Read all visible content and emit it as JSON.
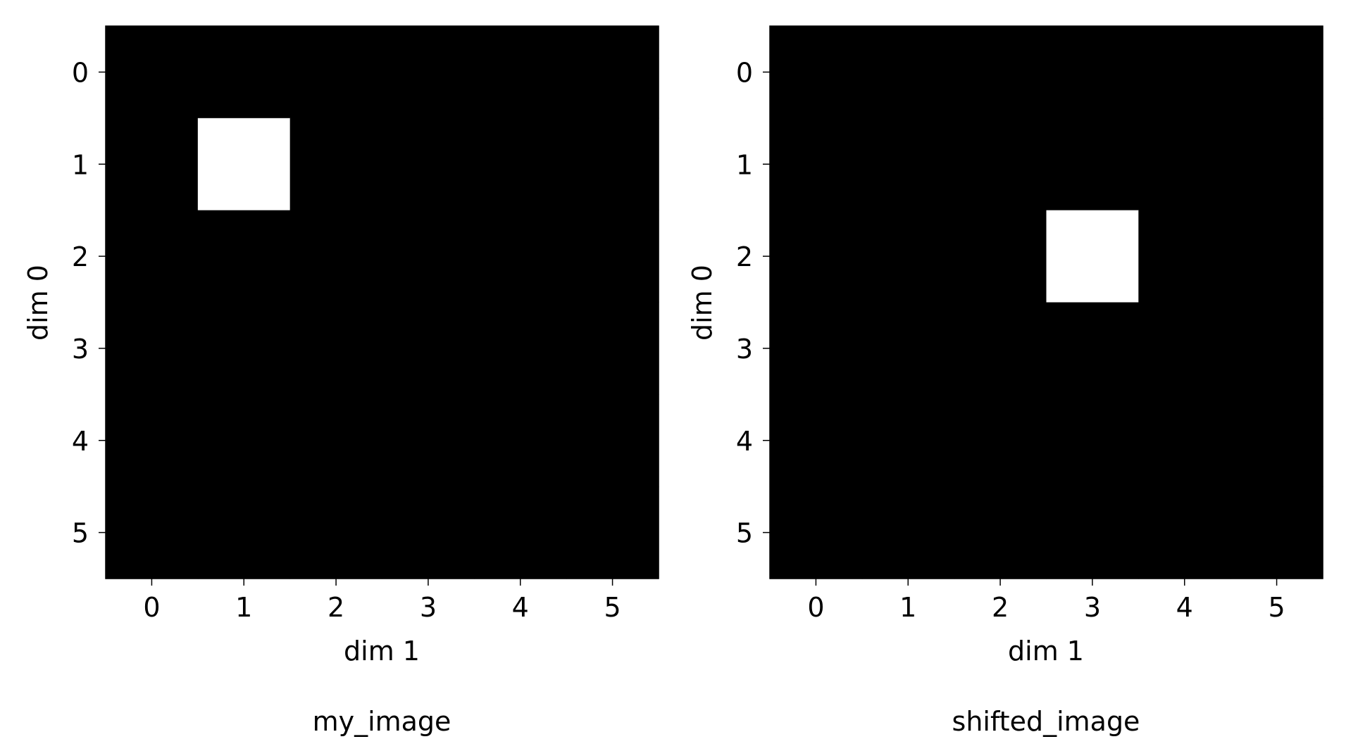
{
  "chart_data": [
    {
      "type": "heatmap",
      "title": "my_image",
      "xlabel": "dim 1",
      "ylabel": "dim 0",
      "x_ticks": [
        "0",
        "1",
        "2",
        "3",
        "4",
        "5"
      ],
      "y_ticks": [
        "0",
        "1",
        "2",
        "3",
        "4",
        "5"
      ],
      "colormap": {
        "0": "#000000",
        "1": "#ffffff"
      },
      "values": [
        [
          0,
          0,
          0,
          0,
          0,
          0
        ],
        [
          0,
          1,
          0,
          0,
          0,
          0
        ],
        [
          0,
          0,
          0,
          0,
          0,
          0
        ],
        [
          0,
          0,
          0,
          0,
          0,
          0
        ],
        [
          0,
          0,
          0,
          0,
          0,
          0
        ],
        [
          0,
          0,
          0,
          0,
          0,
          0
        ]
      ]
    },
    {
      "type": "heatmap",
      "title": "shifted_image",
      "xlabel": "dim 1",
      "ylabel": "dim 0",
      "x_ticks": [
        "0",
        "1",
        "2",
        "3",
        "4",
        "5"
      ],
      "y_ticks": [
        "0",
        "1",
        "2",
        "3",
        "4",
        "5"
      ],
      "colormap": {
        "0": "#000000",
        "1": "#ffffff"
      },
      "values": [
        [
          0,
          0,
          0,
          0,
          0,
          0
        ],
        [
          0,
          0,
          0,
          0,
          0,
          0
        ],
        [
          0,
          0,
          0,
          1,
          0,
          0
        ],
        [
          0,
          0,
          0,
          0,
          0,
          0
        ],
        [
          0,
          0,
          0,
          0,
          0,
          0
        ],
        [
          0,
          0,
          0,
          0,
          0,
          0
        ]
      ]
    }
  ]
}
